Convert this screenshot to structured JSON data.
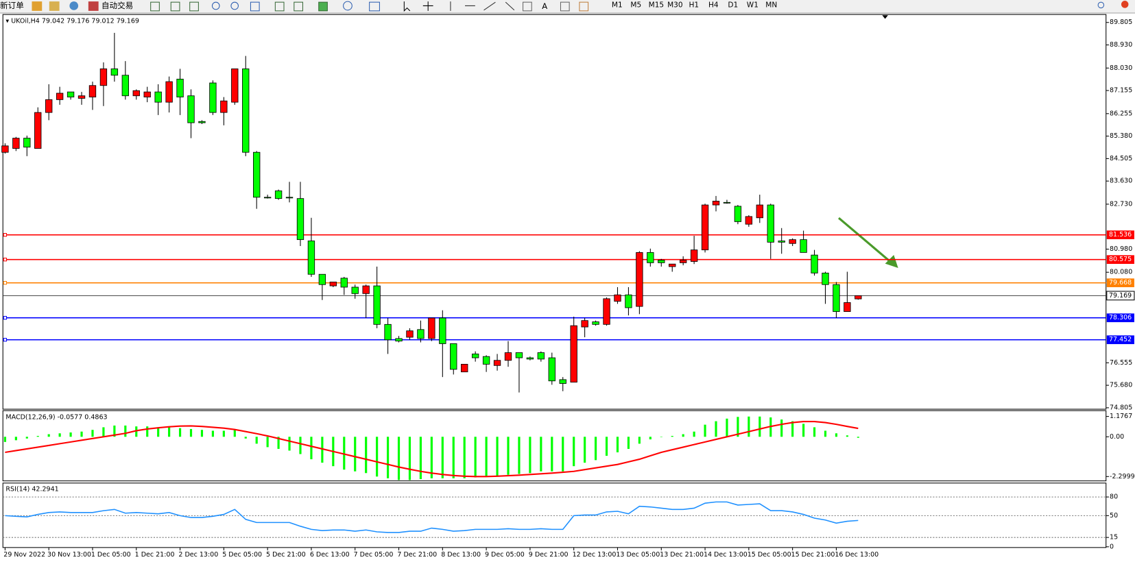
{
  "toolbar": {
    "items": [
      "新订单",
      "自动交易"
    ],
    "timeframes": [
      "M1",
      "M5",
      "M15",
      "M30",
      "H1",
      "H4",
      "D1",
      "W1",
      "MN"
    ]
  },
  "chart_data": [
    {
      "type": "candlestick",
      "symbol": "UKOil,H4",
      "categories": [
        "29 Nov 2022",
        null,
        null,
        null,
        "30 Nov 13:00",
        null,
        null,
        null,
        "1 Dec 05:00",
        null,
        null,
        null,
        "1 Dec 21:00",
        null,
        null,
        null,
        "2 Dec 13:00",
        null,
        null,
        null,
        "5 Dec 05:00",
        null,
        null,
        null,
        "5 Dec 21:00",
        null,
        null,
        null,
        "6 Dec 13:00",
        null,
        null,
        null,
        "7 Dec 05:00",
        null,
        null,
        null,
        "7 Dec 21:00",
        null,
        null,
        null,
        "8 Dec 13:00",
        null,
        null,
        null,
        "9 Dec 05:00",
        null,
        null,
        null,
        "9 Dec 21:00",
        null,
        null,
        null,
        "12 Dec 13:00",
        null,
        null,
        null,
        "13 Dec 05:00",
        null,
        null,
        null,
        "13 Dec 21:00",
        null,
        null,
        null,
        "14 Dec 13:00",
        null,
        null,
        null,
        "15 Dec 05:00",
        null,
        null,
        null,
        "15 Dec 21:00",
        null,
        null,
        null,
        "16 Dec 13:00",
        null,
        null
      ],
      "open": [
        84.75,
        84.9,
        85.3,
        84.9,
        86.3,
        86.8,
        87.1,
        86.85,
        86.9,
        87.35,
        88.0,
        87.75,
        86.95,
        86.9,
        87.1,
        86.7,
        87.6,
        86.95,
        85.95,
        87.45,
        86.3,
        86.7,
        88.0,
        84.75,
        83.0,
        83.25,
        83.0,
        82.95,
        81.3,
        80.0,
        79.55,
        79.85,
        79.5,
        79.25,
        79.55,
        78.05,
        77.5,
        77.55,
        77.85,
        77.5,
        78.3,
        77.3,
        76.2,
        76.9,
        76.8,
        76.45,
        76.65,
        76.95,
        76.75,
        76.95,
        76.75,
        75.9,
        75.8,
        77.95,
        78.15,
        78.05,
        78.95,
        79.2,
        78.75,
        80.85,
        80.55,
        80.3,
        80.45,
        80.5,
        80.95,
        82.7,
        82.8,
        82.65,
        81.95,
        82.2,
        82.7,
        81.3,
        81.2,
        81.35,
        80.75,
        80.05,
        79.6,
        78.55,
        79.042
      ],
      "high": [
        85.1,
        85.35,
        85.4,
        86.5,
        87.4,
        87.3,
        87.1,
        87.1,
        87.5,
        88.25,
        89.4,
        88.3,
        87.2,
        87.3,
        87.4,
        87.7,
        88.0,
        87.2,
        86.0,
        87.55,
        86.9,
        88.0,
        88.5,
        84.8,
        83.1,
        83.3,
        83.6,
        83.6,
        82.2,
        80.0,
        79.7,
        79.9,
        79.6,
        79.6,
        80.3,
        78.3,
        77.6,
        77.9,
        78.2,
        78.3,
        78.6,
        77.3,
        76.5,
        77.0,
        76.85,
        76.9,
        77.4,
        76.95,
        76.8,
        77.0,
        76.95,
        76.0,
        78.35,
        78.3,
        78.2,
        79.1,
        79.5,
        79.5,
        80.9,
        81.0,
        80.6,
        80.4,
        80.7,
        81.5,
        82.75,
        83.05,
        82.9,
        82.7,
        82.3,
        83.1,
        82.75,
        81.8,
        81.4,
        81.7,
        80.95,
        80.1,
        79.7,
        80.1,
        79.176
      ],
      "low": [
        84.7,
        84.8,
        84.6,
        84.9,
        86.0,
        86.6,
        86.8,
        86.6,
        86.4,
        86.55,
        87.5,
        86.8,
        86.8,
        86.7,
        86.2,
        86.3,
        86.2,
        85.3,
        85.85,
        86.2,
        85.8,
        86.6,
        84.6,
        82.55,
        82.95,
        82.9,
        82.8,
        81.1,
        79.9,
        79.0,
        79.5,
        79.2,
        79.05,
        78.3,
        77.9,
        76.9,
        77.35,
        77.45,
        77.35,
        77.4,
        76.0,
        76.1,
        76.2,
        76.6,
        76.2,
        76.25,
        76.4,
        75.4,
        76.65,
        76.6,
        75.7,
        75.45,
        75.8,
        77.55,
        78.0,
        78.0,
        78.85,
        78.4,
        78.45,
        80.3,
        80.3,
        80.1,
        80.35,
        80.4,
        80.85,
        82.45,
        82.75,
        81.95,
        81.85,
        82.0,
        80.6,
        80.8,
        81.1,
        80.85,
        79.95,
        78.85,
        78.3,
        78.55,
        79.012
      ],
      "close": [
        85.0,
        85.3,
        84.95,
        86.3,
        86.8,
        87.05,
        86.9,
        86.95,
        87.35,
        88.0,
        87.75,
        86.95,
        87.15,
        87.1,
        86.7,
        87.5,
        86.9,
        85.9,
        85.9,
        86.3,
        86.75,
        88.0,
        84.75,
        83.0,
        83.0,
        82.95,
        82.98,
        81.35,
        80.0,
        79.6,
        79.7,
        79.5,
        79.25,
        79.55,
        78.05,
        77.45,
        77.4,
        77.8,
        77.5,
        78.3,
        77.3,
        76.3,
        76.5,
        76.75,
        76.5,
        76.65,
        76.95,
        76.75,
        76.7,
        76.7,
        75.85,
        75.75,
        78.0,
        78.2,
        78.05,
        79.05,
        79.2,
        78.7,
        80.85,
        80.45,
        80.45,
        80.4,
        80.55,
        80.95,
        82.7,
        82.85,
        82.78,
        82.05,
        82.25,
        82.7,
        81.25,
        81.25,
        81.35,
        80.85,
        80.05,
        79.6,
        78.55,
        78.9,
        79.169
      ],
      "up_color": "#ff0000",
      "down_color": "#00ff00",
      "ylim": [
        74.749,
        90.115
      ],
      "yticks": [
        89.805,
        {
          "value": 88.93,
          "label": "88.930"
        },
        {
          "value": 88.03,
          "label": "88.030"
        },
        87.155,
        86.255,
        {
          "value": 85.38,
          "label": "85.380"
        },
        84.505,
        {
          "value": 83.63,
          "label": "83.630"
        },
        {
          "value": 82.73,
          "label": "82.730"
        },
        {
          "value": 80.98,
          "label": "80.980"
        },
        {
          "value": 80.08,
          "label": "80.080"
        },
        76.555,
        {
          "value": 75.68,
          "label": "75.680"
        },
        74.805
      ],
      "levels": [
        {
          "value": 81.536,
          "color": "#ff0000"
        },
        {
          "value": 80.575,
          "color": "#ff0000"
        },
        {
          "value": 79.668,
          "color": "#ff8000"
        },
        {
          "value": 78.306,
          "color": "#0000ff"
        },
        {
          "value": 77.452,
          "color": "#0000ff"
        }
      ],
      "grid": false
    },
    {
      "type": "macd",
      "title": "MACD(12,26,9)",
      "series": [
        {
          "color": "#00ff00",
          "values": [
            -0.3,
            -0.2,
            -0.1,
            0.05,
            0.15,
            0.2,
            0.25,
            0.3,
            0.4,
            0.55,
            0.65,
            0.65,
            0.6,
            0.6,
            0.55,
            0.55,
            0.5,
            0.45,
            0.4,
            0.35,
            0.35,
            0.4,
            -0.1,
            -0.4,
            -0.6,
            -0.7,
            -0.8,
            -1.0,
            -1.3,
            -1.5,
            -1.7,
            -1.9,
            -2.0,
            -2.1,
            -2.3,
            -2.4,
            -2.5,
            -2.5,
            -2.45,
            -2.4,
            -2.4,
            -2.4,
            -2.4,
            -2.35,
            -2.3,
            -2.25,
            -2.2,
            -2.15,
            -2.1,
            -2.0,
            -2.0,
            -2.0,
            -1.7,
            -1.5,
            -1.35,
            -1.1,
            -0.9,
            -0.7,
            -0.4,
            -0.15,
            0.0,
            0.05,
            0.15,
            0.3,
            0.7,
            0.9,
            1.05,
            1.15,
            1.17,
            1.17,
            1.12,
            1.0,
            0.9,
            0.75,
            0.55,
            0.35,
            0.2,
            0.08,
            -0.0577
          ]
        },
        {
          "color": "#ff0000",
          "values": [
            -0.9,
            -0.8,
            -0.7,
            -0.6,
            -0.5,
            -0.4,
            -0.3,
            -0.2,
            -0.1,
            0.0,
            0.1,
            0.2,
            0.35,
            0.45,
            0.52,
            0.58,
            0.62,
            0.63,
            0.6,
            0.55,
            0.5,
            0.42,
            0.3,
            0.18,
            0.05,
            -0.1,
            -0.25,
            -0.4,
            -0.55,
            -0.7,
            -0.85,
            -1.0,
            -1.15,
            -1.3,
            -1.45,
            -1.6,
            -1.75,
            -1.88,
            -2.0,
            -2.1,
            -2.18,
            -2.24,
            -2.28,
            -2.3,
            -2.3,
            -2.28,
            -2.25,
            -2.22,
            -2.18,
            -2.14,
            -2.1,
            -2.05,
            -2.0,
            -1.9,
            -1.8,
            -1.7,
            -1.6,
            -1.45,
            -1.3,
            -1.1,
            -0.9,
            -0.75,
            -0.6,
            -0.45,
            -0.3,
            -0.15,
            0.0,
            0.15,
            0.3,
            0.45,
            0.6,
            0.72,
            0.82,
            0.88,
            0.88,
            0.82,
            0.72,
            0.6,
            0.4863
          ]
        }
      ],
      "ylim": [
        -2.551,
        1.512
      ],
      "yticks": [
        -2.2999,
        {
          "value": 0,
          "label": "0.00"
        },
        1.1767
      ]
    },
    {
      "type": "line",
      "title": "RSI(14)",
      "color": "#1e90ff",
      "values": [
        50,
        49,
        48,
        52,
        55,
        56,
        55,
        55,
        55,
        58,
        60,
        54,
        55,
        54,
        53,
        55,
        50,
        47,
        47,
        49,
        52,
        60,
        44,
        39,
        39,
        39,
        39,
        33,
        28,
        26,
        27,
        27,
        25,
        27,
        24,
        23,
        23,
        25,
        25,
        30,
        28,
        25,
        26,
        28,
        28,
        28,
        29,
        28,
        28,
        29,
        28,
        28,
        50,
        51,
        51,
        56,
        57,
        53,
        65,
        64,
        62,
        60,
        60,
        62,
        70,
        72,
        72,
        67,
        68,
        69,
        58,
        58,
        56,
        52,
        46,
        43,
        38,
        41,
        42.2941
      ],
      "ylim": [
        0,
        100
      ],
      "yticks": [
        0,
        15,
        50,
        80
      ],
      "grid": true
    }
  ]
}
